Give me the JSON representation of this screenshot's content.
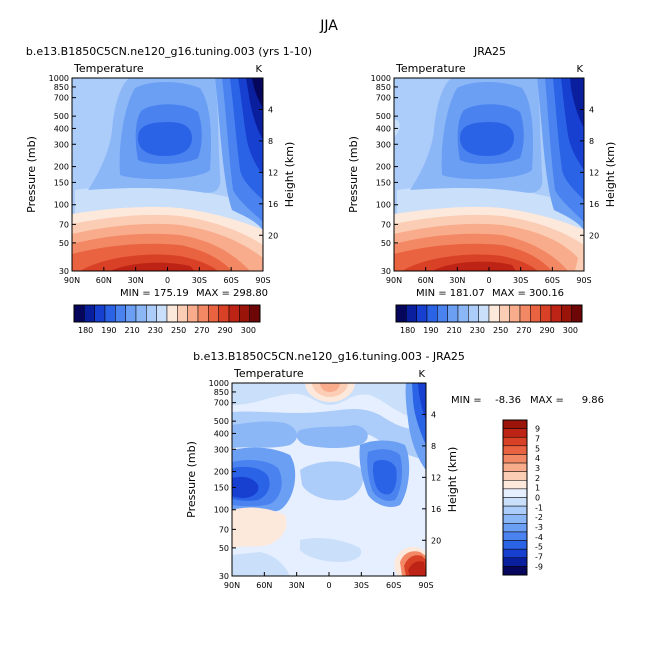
{
  "page": {
    "title": "JJA"
  },
  "colors": {
    "abs_scale": [
      "#06065c",
      "#0a1f9e",
      "#1740d0",
      "#2b63e6",
      "#4a82ef",
      "#6b9ff4",
      "#8cb7f7",
      "#acccfa",
      "#cadff9",
      "#fde8dc",
      "#fbcdb4",
      "#f8ac8c",
      "#f38865",
      "#e96340",
      "#d94126",
      "#bd2416",
      "#9b1409",
      "#6d0606"
    ],
    "diff_scale": [
      "#06065c",
      "#0a1f9e",
      "#1740d0",
      "#2b63e6",
      "#4a82ef",
      "#6b9ff4",
      "#8cb7f7",
      "#acccfa",
      "#cadff9",
      "#e6efff",
      "#fde8dc",
      "#fbcdb4",
      "#f8ac8c",
      "#f38865",
      "#e96340",
      "#d94126",
      "#bd2416",
      "#9b1409"
    ]
  },
  "chart_data": [
    {
      "type": "heatmap",
      "title": "b.e13.B1850C5CN.ne120_g16.tuning.003 (yrs 1-10)",
      "subtitle": "Temperature",
      "units": "K",
      "ylabel": "Pressure (mb)",
      "y2label": "Height (km)",
      "x": [
        "90N",
        "60N",
        "30N",
        "0",
        "30S",
        "60S",
        "90S"
      ],
      "y": [
        "30",
        "50",
        "70",
        "100",
        "150",
        "200",
        "300",
        "400",
        "500",
        "700",
        "850",
        "1000"
      ],
      "y2": [
        "20",
        "16",
        "12",
        "8",
        "4"
      ],
      "min_text": "MIN = 175.19",
      "max_text": "MAX = 298.80",
      "colorbar": [
        "180",
        "190",
        "210",
        "230",
        "250",
        "270",
        "290",
        "300"
      ]
    },
    {
      "type": "heatmap",
      "title": "JRA25",
      "subtitle": "Temperature",
      "units": "K",
      "ylabel": "Pressure (mb)",
      "y2label": "Height (km)",
      "x": [
        "90N",
        "60N",
        "30N",
        "0",
        "30S",
        "60S",
        "90S"
      ],
      "y": [
        "30",
        "50",
        "70",
        "100",
        "150",
        "200",
        "300",
        "400",
        "500",
        "700",
        "850",
        "1000"
      ],
      "y2": [
        "20",
        "16",
        "12",
        "8",
        "4"
      ],
      "min_text": "MIN = 181.07",
      "max_text": "MAX = 300.16",
      "colorbar": [
        "180",
        "190",
        "210",
        "230",
        "250",
        "270",
        "290",
        "300"
      ]
    },
    {
      "type": "heatmap",
      "title": "b.e13.B1850C5CN.ne120_g16.tuning.003 - JRA25",
      "subtitle": "Temperature",
      "units": "K",
      "ylabel": "Pressure (mb)",
      "y2label": "Height (km)",
      "x": [
        "90N",
        "60N",
        "30N",
        "0",
        "30S",
        "60S",
        "90S"
      ],
      "y": [
        "30",
        "50",
        "70",
        "100",
        "150",
        "200",
        "300",
        "400",
        "500",
        "700",
        "850",
        "1000"
      ],
      "y2": [
        "20",
        "16",
        "12",
        "8",
        "4"
      ],
      "min_label": "MIN =",
      "min_value": "-8.36",
      "max_label": "MAX =",
      "max_value": "9.86",
      "colorbar": [
        "9",
        "7",
        "5",
        "4",
        "3",
        "2",
        "1",
        "0",
        "-1",
        "-2",
        "-3",
        "-4",
        "-5",
        "-7",
        "-9"
      ]
    }
  ]
}
